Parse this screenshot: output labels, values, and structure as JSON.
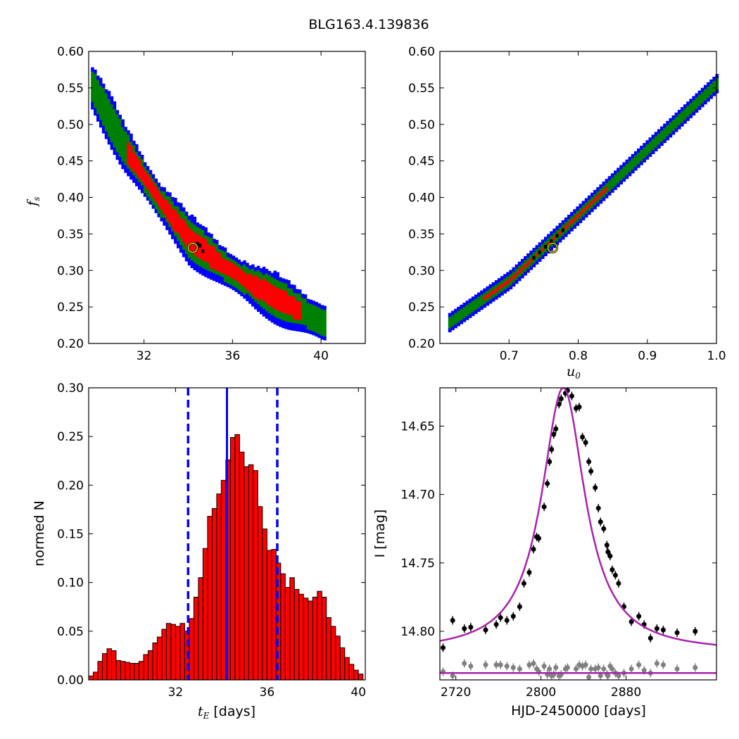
{
  "title": "BLG163.4.139836",
  "chart_data": [
    {
      "id": "fs_vs_tE",
      "type": "heatmap",
      "xlim": [
        29.5,
        42
      ],
      "ylim": [
        0.2,
        0.6
      ],
      "xticks": [
        32,
        36,
        40
      ],
      "yticks": [
        0.2,
        0.25,
        0.3,
        0.35,
        0.4,
        0.45,
        0.5,
        0.55,
        0.6
      ],
      "ylabel_main": "f",
      "ylabel_sub": "s",
      "levels": [
        {
          "color": "#0000ff",
          "meaning": "outer"
        },
        {
          "color": "#008000",
          "meaning": "middle"
        },
        {
          "color": "#ff0000",
          "meaning": "inner"
        },
        {
          "color": "#000000",
          "meaning": "core"
        }
      ],
      "band": [
        [
          29.5,
          0.555
        ],
        [
          31.0,
          0.47
        ],
        [
          32.5,
          0.4
        ],
        [
          34.0,
          0.34
        ],
        [
          35.5,
          0.305
        ],
        [
          37.0,
          0.275
        ],
        [
          38.5,
          0.25
        ],
        [
          40.0,
          0.228
        ]
      ],
      "best_fit": {
        "x": 34.2,
        "y": 0.331
      }
    },
    {
      "id": "fs_vs_u0",
      "type": "heatmap",
      "xlim": [
        0.6,
        1.0
      ],
      "ylim": [
        0.2,
        0.6
      ],
      "xticks": [
        0.7,
        0.8,
        0.9,
        1.0
      ],
      "yticks": [
        0.2,
        0.25,
        0.3,
        0.35,
        0.4,
        0.45,
        0.5,
        0.55,
        0.6
      ],
      "xlabel_main": "u",
      "xlabel_sub": "0",
      "band": [
        [
          0.61,
          0.225
        ],
        [
          0.7,
          0.285
        ],
        [
          0.8,
          0.375
        ],
        [
          0.9,
          0.465
        ],
        [
          1.0,
          0.555
        ]
      ],
      "best_fit": {
        "x": 0.763,
        "y": 0.331
      }
    },
    {
      "id": "tE_histogram",
      "type": "bar",
      "xlim": [
        28.2,
        40.3
      ],
      "ylim": [
        0,
        0.3
      ],
      "xticks": [
        32,
        36,
        40
      ],
      "yticks": [
        0.0,
        0.05,
        0.1,
        0.15,
        0.2,
        0.25,
        0.3
      ],
      "xlabel_italic": "t",
      "xlabel_sub": "E",
      "xlabel_rest": " [days]",
      "ylabel": "normed N",
      "bin_start": 28.2,
      "bin_width": 0.2,
      "values": [
        0.004,
        0.008,
        0.019,
        0.027,
        0.032,
        0.03,
        0.02,
        0.019,
        0.018,
        0.017,
        0.017,
        0.019,
        0.026,
        0.03,
        0.038,
        0.044,
        0.052,
        0.058,
        0.057,
        0.055,
        0.058,
        0.05,
        0.063,
        0.085,
        0.105,
        0.135,
        0.168,
        0.176,
        0.191,
        0.205,
        0.226,
        0.249,
        0.252,
        0.234,
        0.219,
        0.221,
        0.215,
        0.178,
        0.155,
        0.133,
        0.134,
        0.12,
        0.109,
        0.095,
        0.105,
        0.093,
        0.088,
        0.084,
        0.081,
        0.085,
        0.091,
        0.085,
        0.064,
        0.055,
        0.045,
        0.033,
        0.023,
        0.016,
        0.01,
        0.006,
        0.004
      ],
      "median": 34.25,
      "lower": 32.55,
      "upper": 36.45,
      "bar_color": "#ff0000",
      "line_color": "#0000ff"
    },
    {
      "id": "lightcurve",
      "type": "scatter",
      "xlim": [
        2705,
        2965
      ],
      "ylim_inverted": [
        14.8355,
        14.622
      ],
      "xticks": [
        2720,
        2800,
        2880
      ],
      "yticks": [
        14.65,
        14.7,
        14.75,
        14.8
      ],
      "xlabel": "HJD-2450000 [days]",
      "ylabel": "I [mag]",
      "model": {
        "t0": 2821,
        "peak_mag": 14.622,
        "base_mag": 14.8155,
        "width_days": 31
      },
      "model_color": "#aa22aa",
      "residual_offset": 14.8305,
      "data_color": "#000000",
      "residual_color": "#808080",
      "points": [
        [
          2708,
          14.812
        ],
        [
          2717,
          14.792
        ],
        [
          2728,
          14.798
        ],
        [
          2734,
          14.797
        ],
        [
          2748,
          14.799
        ],
        [
          2758,
          14.795
        ],
        [
          2762,
          14.79
        ],
        [
          2768,
          14.792
        ],
        [
          2774,
          14.789
        ],
        [
          2780,
          14.782
        ],
        [
          2784,
          14.765
        ],
        [
          2789,
          14.757
        ],
        [
          2793,
          14.74
        ],
        [
          2796,
          14.731
        ],
        [
          2798,
          14.732
        ],
        [
          2803,
          14.709
        ],
        [
          2806,
          14.692
        ],
        [
          2808,
          14.676
        ],
        [
          2810,
          14.667
        ],
        [
          2812,
          14.656
        ],
        [
          2814,
          14.652
        ],
        [
          2817,
          14.634
        ],
        [
          2819,
          14.63
        ],
        [
          2823,
          14.626
        ],
        [
          2825,
          14.624
        ],
        [
          2829,
          14.628
        ],
        [
          2833,
          14.637
        ],
        [
          2836,
          14.636
        ],
        [
          2839,
          14.658
        ],
        [
          2842,
          14.662
        ],
        [
          2845,
          14.676
        ],
        [
          2847,
          14.683
        ],
        [
          2851,
          14.695
        ],
        [
          2854,
          14.71
        ],
        [
          2856,
          14.72
        ],
        [
          2859,
          14.725
        ],
        [
          2862,
          14.737
        ],
        [
          2863,
          14.742
        ],
        [
          2865,
          14.745
        ],
        [
          2867,
          14.755
        ],
        [
          2870,
          14.759
        ],
        [
          2873,
          14.765
        ],
        [
          2878,
          14.782
        ],
        [
          2885,
          14.793
        ],
        [
          2892,
          14.789
        ],
        [
          2897,
          14.795
        ],
        [
          2903,
          14.805
        ],
        [
          2909,
          14.798
        ],
        [
          2915,
          14.799
        ],
        [
          2928,
          14.801
        ],
        [
          2945,
          14.8
        ]
      ],
      "residuals": [
        [
          2708,
          -0.001
        ],
        [
          2717,
          0.002
        ],
        [
          2728,
          -0.007
        ],
        [
          2734,
          -0.005
        ],
        [
          2748,
          -0.006
        ],
        [
          2758,
          -0.006
        ],
        [
          2762,
          -0.006
        ],
        [
          2768,
          -0.005
        ],
        [
          2774,
          -0.004
        ],
        [
          2780,
          -0.003
        ],
        [
          2784,
          0.008
        ],
        [
          2789,
          -0.006
        ],
        [
          2793,
          -0.007
        ],
        [
          2796,
          -0.003
        ],
        [
          2798,
          -0.001
        ],
        [
          2803,
          -0.005
        ],
        [
          2806,
          0.001
        ],
        [
          2808,
          -0.003
        ],
        [
          2810,
          0.002
        ],
        [
          2812,
          0.001
        ],
        [
          2814,
          -0.004
        ],
        [
          2817,
          0.002
        ],
        [
          2819,
          0.001
        ],
        [
          2823,
          -0.003
        ],
        [
          2825,
          -0.004
        ],
        [
          2829,
          0.008
        ],
        [
          2833,
          -0.003
        ],
        [
          2836,
          -0.006
        ],
        [
          2839,
          -0.005
        ],
        [
          2842,
          -0.006
        ],
        [
          2845,
          0.003
        ],
        [
          2847,
          -0.003
        ],
        [
          2851,
          -0.003
        ],
        [
          2854,
          -0.004
        ],
        [
          2856,
          0.002
        ],
        [
          2859,
          -0.003
        ],
        [
          2862,
          0.001
        ],
        [
          2863,
          0.002
        ],
        [
          2865,
          -0.005
        ],
        [
          2867,
          -0.003
        ],
        [
          2870,
          0.0
        ],
        [
          2873,
          0.002
        ],
        [
          2878,
          0.0
        ],
        [
          2885,
          -0.003
        ],
        [
          2892,
          -0.006
        ],
        [
          2897,
          -0.002
        ],
        [
          2903,
          0.0
        ],
        [
          2909,
          -0.007
        ],
        [
          2915,
          -0.006
        ],
        [
          2928,
          -0.003
        ],
        [
          2945,
          -0.004
        ]
      ]
    }
  ]
}
